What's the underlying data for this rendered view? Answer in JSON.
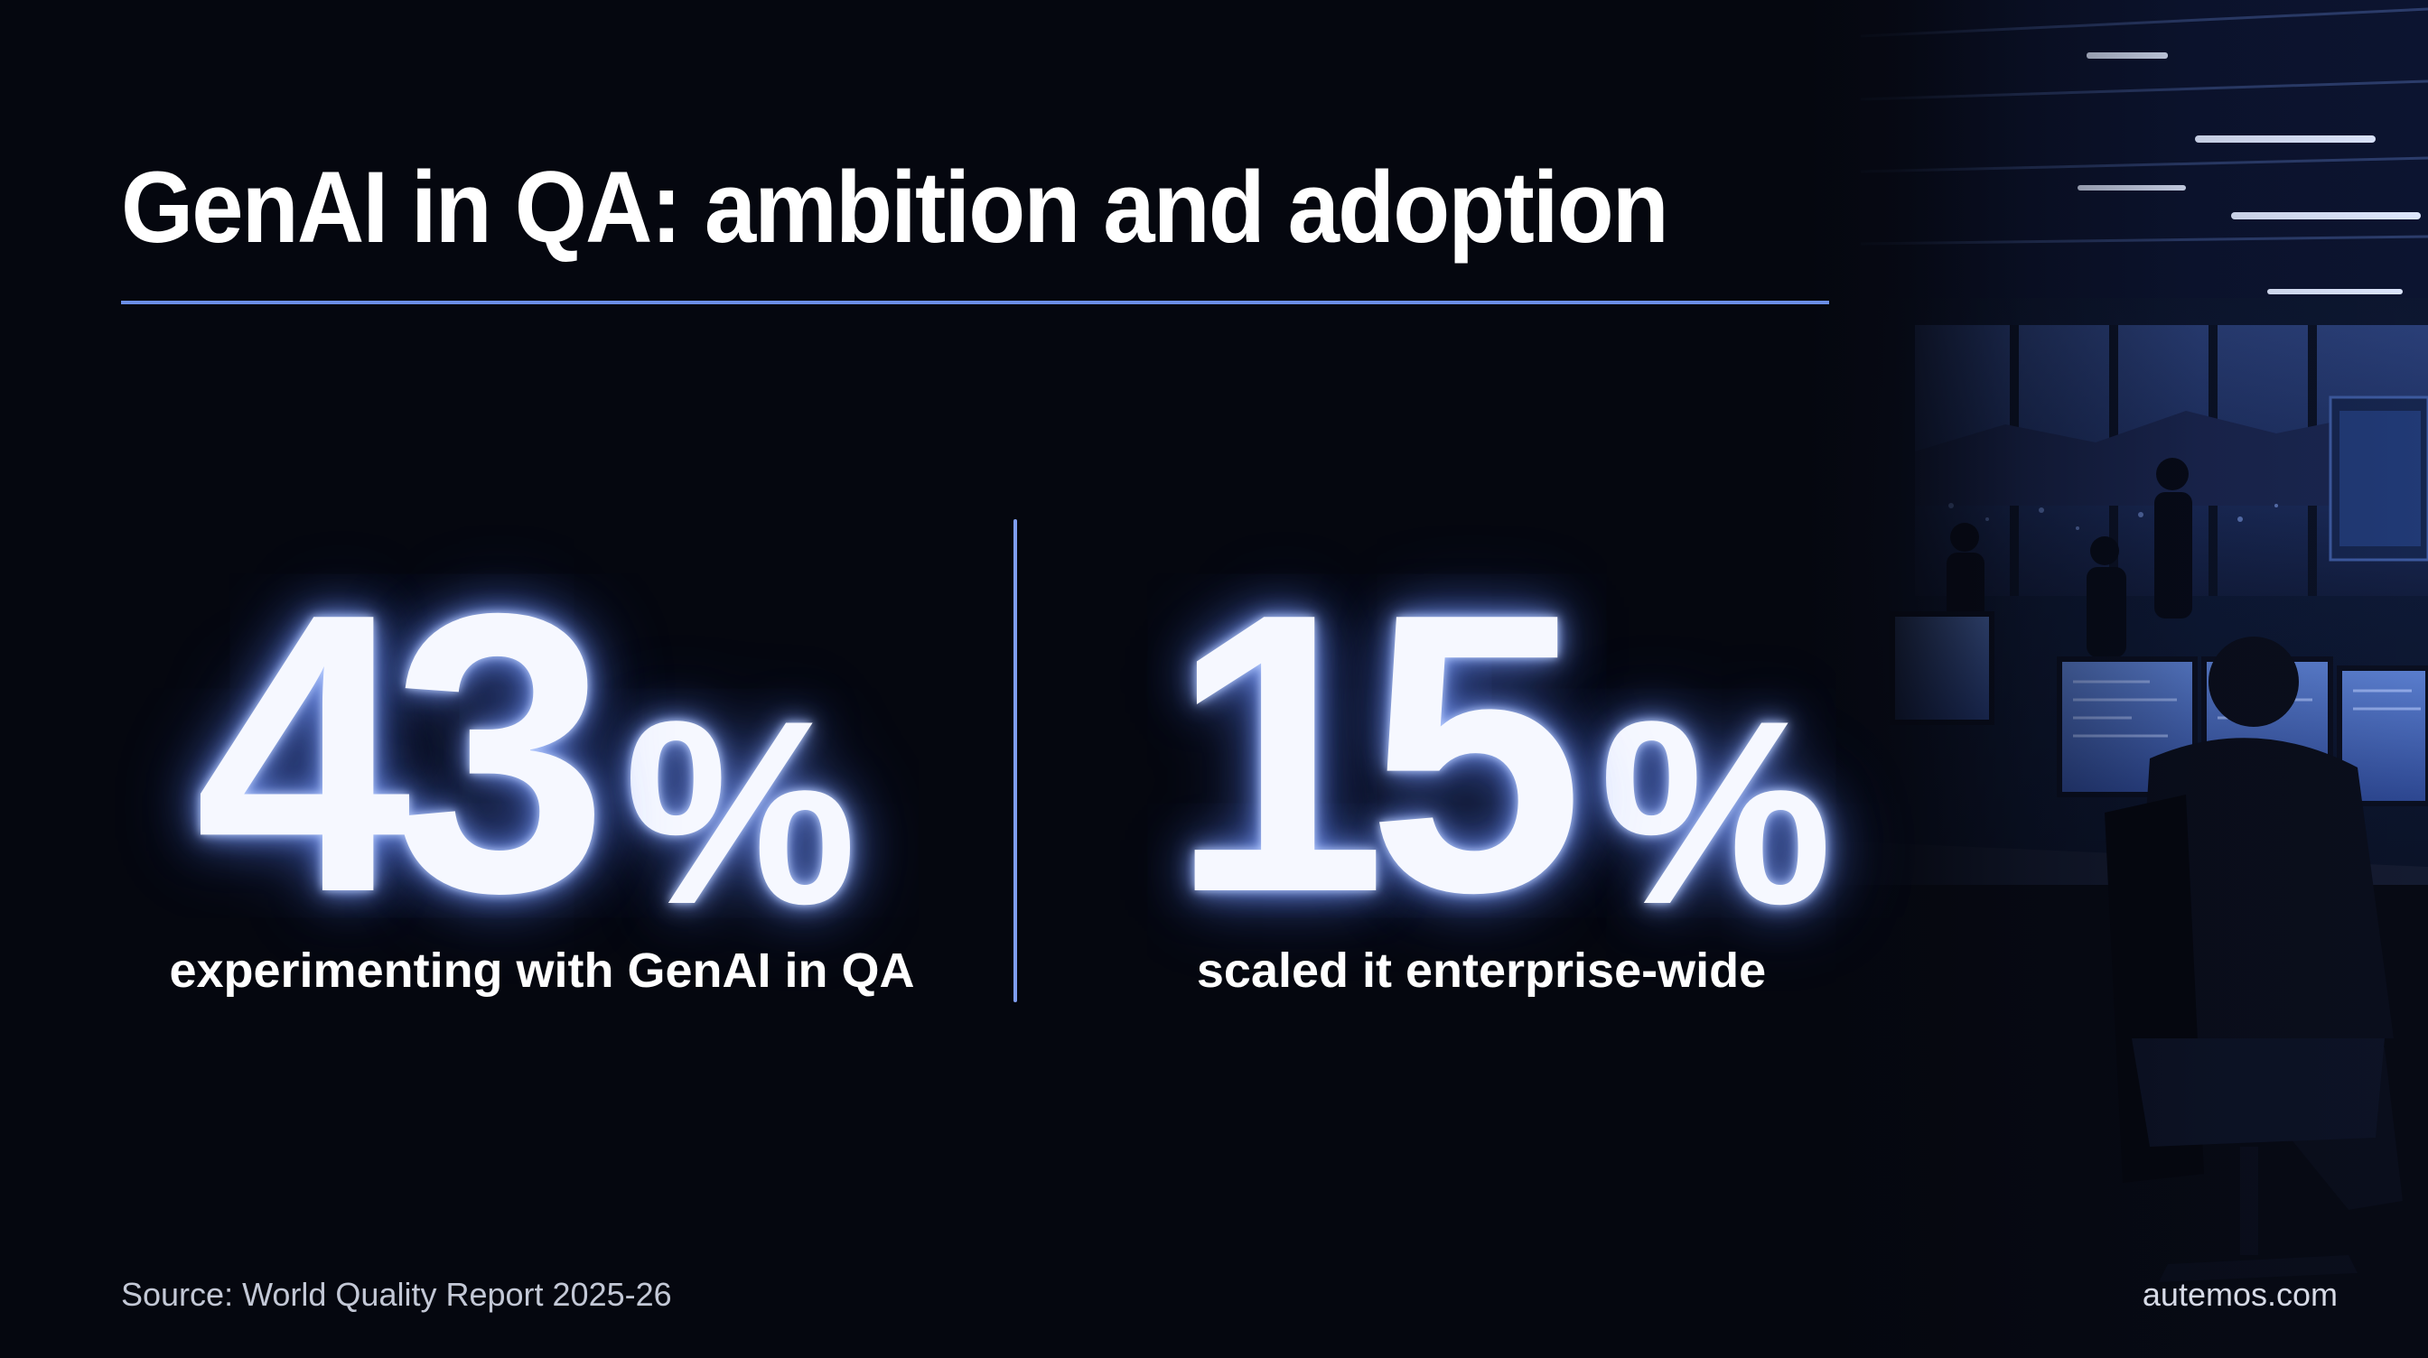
{
  "slide": {
    "title": "GenAI in QA: ambition and adoption",
    "stats": [
      {
        "value": "43",
        "unit": "%",
        "caption": "experimenting with GenAI in QA"
      },
      {
        "value": "15",
        "unit": "%",
        "caption": "scaled it enterprise-wide"
      }
    ],
    "source": "Source: World Quality Report 2025-26",
    "site": "autemos.com"
  },
  "colors": {
    "background": "#05070f",
    "accent": "#6b8ee6",
    "glow": "#8caaff",
    "text": "#ffffff"
  },
  "photo": {
    "subject": "office-workers-at-monitors-photo"
  }
}
